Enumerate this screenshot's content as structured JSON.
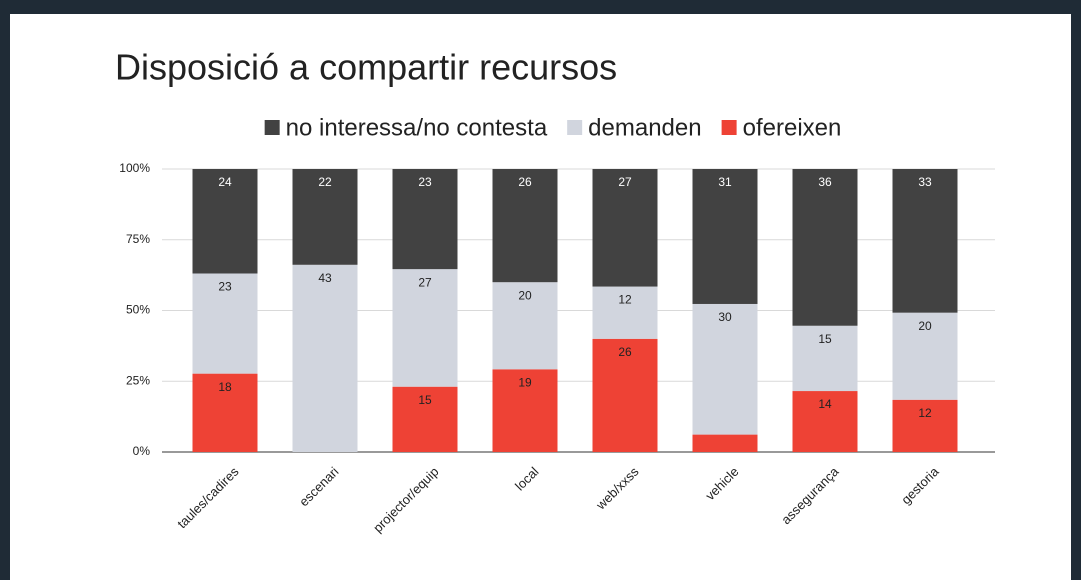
{
  "chart_data": {
    "type": "bar",
    "stacking": "percent",
    "title": "Disposició a compartir recursos",
    "categories": [
      "taules/cadires",
      "escenari",
      "projector/equip",
      "local",
      "web/xxss",
      "vehicle",
      "assegurança",
      "gestoria"
    ],
    "series": [
      {
        "name": "no interessa/no contesta",
        "color": "#424242",
        "values": [
          24,
          22,
          23,
          26,
          27,
          31,
          36,
          33
        ]
      },
      {
        "name": "demanden",
        "color": "#d1d5de",
        "values": [
          23,
          43,
          27,
          20,
          12,
          30,
          15,
          20
        ]
      },
      {
        "name": "ofereixen",
        "color": "#ee4235",
        "values": [
          18,
          0,
          15,
          19,
          26,
          4,
          14,
          12
        ]
      }
    ],
    "ylim": [
      0,
      100
    ],
    "yticks": [
      {
        "value": 0,
        "label": "0%"
      },
      {
        "value": 25,
        "label": "25%"
      },
      {
        "value": 50,
        "label": "50%"
      },
      {
        "value": 75,
        "label": "75%"
      },
      {
        "value": 100,
        "label": "100%"
      }
    ],
    "grid": true,
    "legend": "top"
  }
}
